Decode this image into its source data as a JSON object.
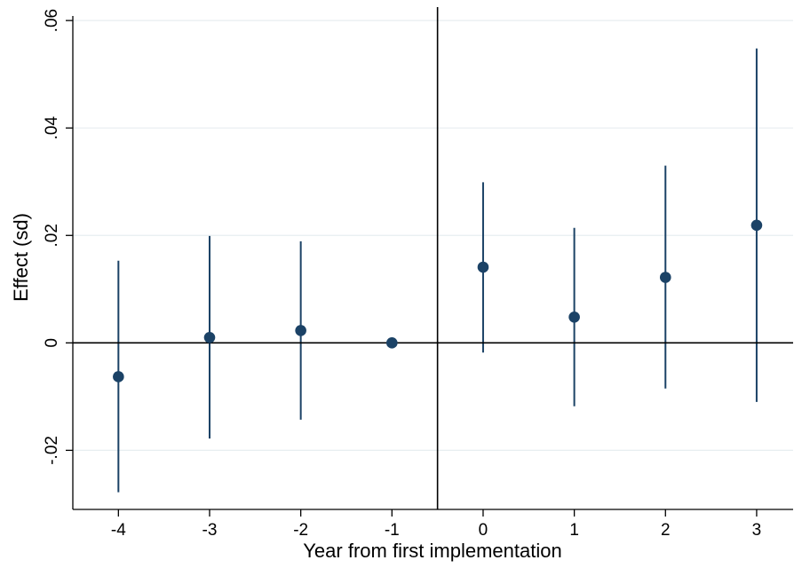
{
  "chart_data": {
    "type": "scatter",
    "title": "",
    "xlabel": "Year from first implementation",
    "ylabel": "Effect (sd)",
    "x_ticks": [
      "-4",
      "-3",
      "-2",
      "-1",
      "0",
      "1",
      "2",
      "3"
    ],
    "y_ticks": [
      "-.02",
      "0",
      ".02",
      ".04",
      ".06"
    ],
    "y_tick_values": [
      -0.02,
      0,
      0.02,
      0.04,
      0.06
    ],
    "xlim": [
      -4.5,
      3.4
    ],
    "ylim": [
      -0.031,
      0.0625
    ],
    "grid": true,
    "legend": "none",
    "reference_lines": {
      "y": 0,
      "x": -0.5
    },
    "series": [
      {
        "x": [
          -4,
          -3,
          -2,
          -1,
          0,
          1,
          2,
          3
        ],
        "y": [
          -0.0063,
          0.001,
          0.0023,
          0.0,
          0.0141,
          0.0048,
          0.0122,
          0.0219
        ],
        "ci_low": [
          -0.0278,
          -0.0178,
          -0.0143,
          0.0,
          -0.0018,
          -0.0118,
          -0.0085,
          -0.011
        ],
        "ci_high": [
          0.0153,
          0.0199,
          0.0189,
          0.0,
          0.0299,
          0.0214,
          0.033,
          0.0548
        ]
      }
    ],
    "colors": {
      "marker": "#1b4266",
      "ci": "#1b4266",
      "grid": "#e7eef0",
      "axis": "#000000"
    }
  }
}
